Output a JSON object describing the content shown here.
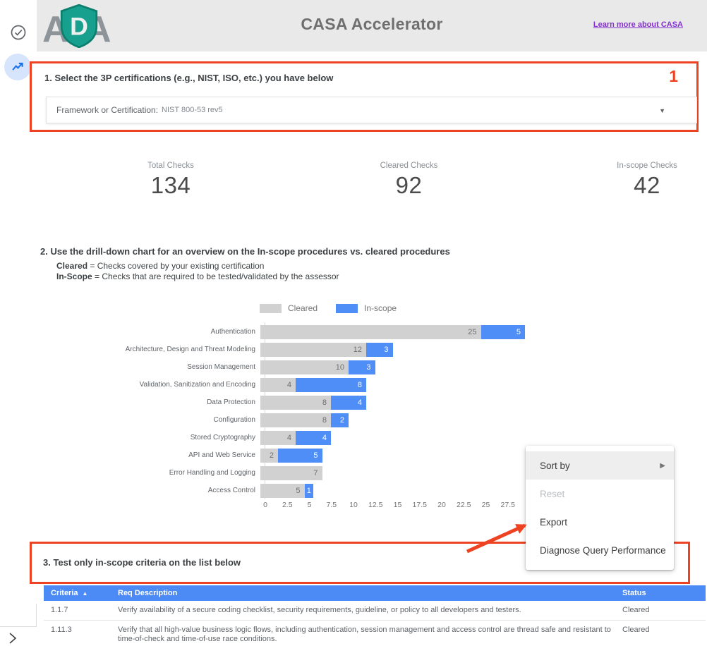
{
  "header": {
    "logo_left": "A",
    "logo_shield_letter": "D",
    "logo_right": "A",
    "title": "CASA Accelerator",
    "link": "Learn more about CASA"
  },
  "sidebar": {
    "tools": [
      {
        "icon": "check-circle-icon",
        "active": false
      },
      {
        "icon": "trending-up-icon",
        "active": true
      }
    ],
    "collapse_icon": "chevron-right-icon"
  },
  "section1": {
    "heading": "1. Select the 3P certifications (e.g., NIST, ISO, etc.) you have below",
    "marker": "1",
    "dropdown": {
      "label": "Framework or Certification:",
      "value": "NIST 800-53 rev5",
      "caret": "▼"
    }
  },
  "stats": [
    {
      "label": "Total Checks",
      "value": "134"
    },
    {
      "label": "Cleared Checks",
      "value": "92"
    },
    {
      "label": "In-scope Checks",
      "value": "42"
    }
  ],
  "section2": {
    "heading": "2. Use the drill-down chart for an overview on the In-scope procedures vs. cleared procedures",
    "definitions": [
      {
        "term": "Cleared",
        "text": " = Checks covered by your existing certification"
      },
      {
        "term": "In-Scope",
        "text": " = Checks that are required to be tested/validated by the assessor"
      }
    ]
  },
  "chart_data": {
    "type": "bar",
    "orientation": "horizontal",
    "stacked": true,
    "grid": false,
    "legend_position": "top",
    "categories": [
      "Authentication",
      "Architecture, Design and Threat Modeling",
      "Session Management",
      "Validation, Sanitization and Encoding",
      "Data Protection",
      "Configuration",
      "Stored Cryptography",
      "API and Web Service",
      "Error Handling and Logging",
      "Access Control"
    ],
    "series": [
      {
        "name": "Cleared",
        "color": "#d1d1d1",
        "values": [
          25,
          12,
          10,
          4,
          8,
          8,
          4,
          2,
          7,
          5
        ]
      },
      {
        "name": "In-scope",
        "color": "#4f8ef7",
        "values": [
          5,
          3,
          3,
          8,
          4,
          2,
          4,
          5,
          0,
          1
        ]
      }
    ],
    "x_ticks": [
      0,
      2.5,
      5,
      7.5,
      10,
      12.5,
      15,
      17.5,
      20,
      22.5,
      25,
      27.5
    ],
    "xlim": [
      0,
      30
    ]
  },
  "context_menu": {
    "items": [
      {
        "label": "Sort by",
        "submenu": true,
        "highlighted": true,
        "disabled": false
      },
      {
        "label": "Reset",
        "submenu": false,
        "highlighted": false,
        "disabled": true
      },
      {
        "label": "Export",
        "submenu": false,
        "highlighted": false,
        "disabled": false
      },
      {
        "label": "Diagnose Query Performance",
        "submenu": false,
        "highlighted": false,
        "disabled": false
      }
    ],
    "submenu_arrow": "▶"
  },
  "section3": {
    "heading": "3. Test only in-scope criteria on the list below"
  },
  "table": {
    "columns": [
      "Criteria",
      "Req Description",
      "Status"
    ],
    "sort": {
      "column": "Criteria",
      "indicator": "▲"
    },
    "rows": [
      {
        "criteria": "1.1.7",
        "description": "Verify availability of a secure coding checklist, security requirements, guideline, or policy to all developers and testers.",
        "status": "Cleared"
      },
      {
        "criteria": "1.11.3",
        "description": "Verify that all high-value business logic flows, including authentication, session management and access control are thread safe and resistant to time-of-check and time-of-use race conditions.",
        "status": "Cleared"
      }
    ]
  },
  "icons": {
    "check-circle-icon": "✓",
    "trending-up-icon": "↗",
    "chevron-right-icon": "›",
    "dropdown-caret-icon": "▼",
    "submenu-arrow-icon": "▶",
    "sort-asc-icon": "▲",
    "red-arrow-annotation": "➚"
  },
  "colors": {
    "annotation_red": "#ee4323",
    "header_bg": "#e9e9e9",
    "table_header_blue": "#4c8bf5",
    "bar_gray": "#d1d1d1",
    "bar_blue": "#4f8ef7",
    "link_purple": "#8430ce",
    "accent_blue": "#1a73e8",
    "logo_teal": "#16a08d"
  }
}
